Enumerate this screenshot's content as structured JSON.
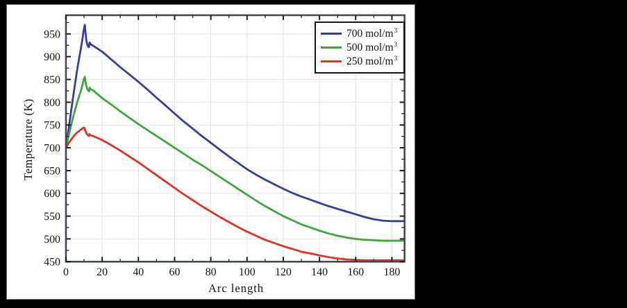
{
  "theme": {
    "background": "#000000",
    "panel_background": "#ffffff",
    "frame_color": "#3f4a54",
    "tick_color": "#181b1f",
    "grid_color": "#e4e4e4",
    "text_color": "#111111"
  },
  "chart_data": {
    "type": "line",
    "title": "",
    "xlabel": "Arc length",
    "ylabel": "Temperature (K)",
    "xlim": [
      0,
      187
    ],
    "ylim": [
      450,
      991
    ],
    "xticks": [
      0,
      20,
      40,
      60,
      80,
      100,
      120,
      140,
      160,
      180
    ],
    "yticks": [
      450,
      500,
      550,
      600,
      650,
      700,
      750,
      800,
      850,
      900,
      950
    ],
    "x_minor_step": 10,
    "y_minor_step": 25,
    "grid": true,
    "legend": {
      "position": "top-right",
      "items": [
        {
          "text": "700 mol/m",
          "sup": "3"
        },
        {
          "text": "500 mol/m",
          "sup": "3"
        },
        {
          "text": "250 mol/m",
          "sup": "3"
        }
      ]
    },
    "series": [
      {
        "name": "700 mol/m^3",
        "color": "#343e96",
        "points": [
          [
            0,
            700
          ],
          [
            1,
            727
          ],
          [
            2,
            756
          ],
          [
            3,
            785
          ],
          [
            4,
            813
          ],
          [
            5,
            840
          ],
          [
            6,
            866
          ],
          [
            7,
            890
          ],
          [
            8,
            913
          ],
          [
            9,
            936
          ],
          [
            9.7,
            956
          ],
          [
            10.4,
            970
          ],
          [
            10.8,
            953
          ],
          [
            11.2,
            938
          ],
          [
            11.7,
            927
          ],
          [
            12.3,
            922
          ],
          [
            12.7,
            921
          ],
          [
            13,
            931
          ],
          [
            13.4,
            929
          ],
          [
            14,
            926
          ],
          [
            15,
            924
          ],
          [
            20,
            911
          ],
          [
            25,
            894
          ],
          [
            30,
            877
          ],
          [
            35,
            861
          ],
          [
            40,
            845
          ],
          [
            45,
            828
          ],
          [
            50,
            810
          ],
          [
            55,
            793
          ],
          [
            60,
            775
          ],
          [
            65,
            758
          ],
          [
            70,
            742
          ],
          [
            75,
            726
          ],
          [
            80,
            711
          ],
          [
            85,
            696
          ],
          [
            90,
            681
          ],
          [
            95,
            667
          ],
          [
            100,
            653
          ],
          [
            105,
            641
          ],
          [
            110,
            630
          ],
          [
            115,
            620
          ],
          [
            120,
            610
          ],
          [
            125,
            601
          ],
          [
            130,
            593
          ],
          [
            135,
            586
          ],
          [
            140,
            579
          ],
          [
            145,
            572
          ],
          [
            150,
            566
          ],
          [
            155,
            560
          ],
          [
            160,
            554
          ],
          [
            165,
            548
          ],
          [
            170,
            543
          ],
          [
            175,
            540
          ],
          [
            180,
            539
          ],
          [
            187,
            539
          ]
        ]
      },
      {
        "name": "500 mol/m^3",
        "color": "#3ea53c",
        "points": [
          [
            0,
            700
          ],
          [
            1,
            718
          ],
          [
            2,
            735
          ],
          [
            3,
            752
          ],
          [
            4,
            768
          ],
          [
            5,
            783
          ],
          [
            6,
            797
          ],
          [
            7,
            810
          ],
          [
            8,
            822
          ],
          [
            9,
            836
          ],
          [
            9.8,
            850
          ],
          [
            10.4,
            856
          ],
          [
            10.8,
            845
          ],
          [
            11.3,
            835
          ],
          [
            11.9,
            828
          ],
          [
            12.4,
            825
          ],
          [
            12.8,
            824
          ],
          [
            13.1,
            832
          ],
          [
            13.5,
            829
          ],
          [
            14,
            828
          ],
          [
            15,
            826
          ],
          [
            20,
            809
          ],
          [
            25,
            795
          ],
          [
            30,
            780
          ],
          [
            35,
            766
          ],
          [
            40,
            752
          ],
          [
            45,
            739
          ],
          [
            50,
            726
          ],
          [
            55,
            713
          ],
          [
            60,
            700
          ],
          [
            65,
            687
          ],
          [
            70,
            674
          ],
          [
            75,
            662
          ],
          [
            80,
            649
          ],
          [
            85,
            636
          ],
          [
            90,
            623
          ],
          [
            95,
            610
          ],
          [
            100,
            597
          ],
          [
            105,
            584
          ],
          [
            110,
            572
          ],
          [
            115,
            561
          ],
          [
            120,
            550
          ],
          [
            125,
            541
          ],
          [
            130,
            532
          ],
          [
            135,
            525
          ],
          [
            140,
            518
          ],
          [
            145,
            512
          ],
          [
            150,
            507
          ],
          [
            155,
            503
          ],
          [
            160,
            500
          ],
          [
            165,
            498
          ],
          [
            170,
            497
          ],
          [
            175,
            496
          ],
          [
            180,
            496
          ],
          [
            187,
            496
          ]
        ]
      },
      {
        "name": "250 mol/m^3",
        "color": "#dd3226",
        "points": [
          [
            0,
            700
          ],
          [
            1,
            707
          ],
          [
            2,
            713
          ],
          [
            3,
            719
          ],
          [
            4,
            724
          ],
          [
            5,
            729
          ],
          [
            6,
            733
          ],
          [
            7,
            736
          ],
          [
            8,
            739
          ],
          [
            9,
            742
          ],
          [
            9.6,
            744
          ],
          [
            10.2,
            744
          ],
          [
            10.7,
            738
          ],
          [
            11.2,
            733
          ],
          [
            11.8,
            729
          ],
          [
            12.3,
            727
          ],
          [
            12.7,
            726
          ],
          [
            13,
            730
          ],
          [
            13.4,
            728
          ],
          [
            14,
            727
          ],
          [
            15,
            726
          ],
          [
            20,
            717
          ],
          [
            25,
            706
          ],
          [
            30,
            694
          ],
          [
            35,
            681
          ],
          [
            40,
            668
          ],
          [
            45,
            654
          ],
          [
            50,
            640
          ],
          [
            55,
            626
          ],
          [
            60,
            612
          ],
          [
            65,
            598
          ],
          [
            70,
            585
          ],
          [
            75,
            572
          ],
          [
            80,
            560
          ],
          [
            85,
            548
          ],
          [
            90,
            537
          ],
          [
            95,
            526
          ],
          [
            100,
            516
          ],
          [
            105,
            507
          ],
          [
            110,
            498
          ],
          [
            115,
            491
          ],
          [
            120,
            484
          ],
          [
            125,
            478
          ],
          [
            130,
            472
          ],
          [
            135,
            468
          ],
          [
            140,
            464
          ],
          [
            145,
            460
          ],
          [
            150,
            457
          ],
          [
            155,
            455
          ],
          [
            160,
            454
          ],
          [
            165,
            453
          ],
          [
            170,
            453
          ],
          [
            175,
            453
          ],
          [
            180,
            453
          ],
          [
            187,
            453
          ]
        ]
      }
    ]
  }
}
